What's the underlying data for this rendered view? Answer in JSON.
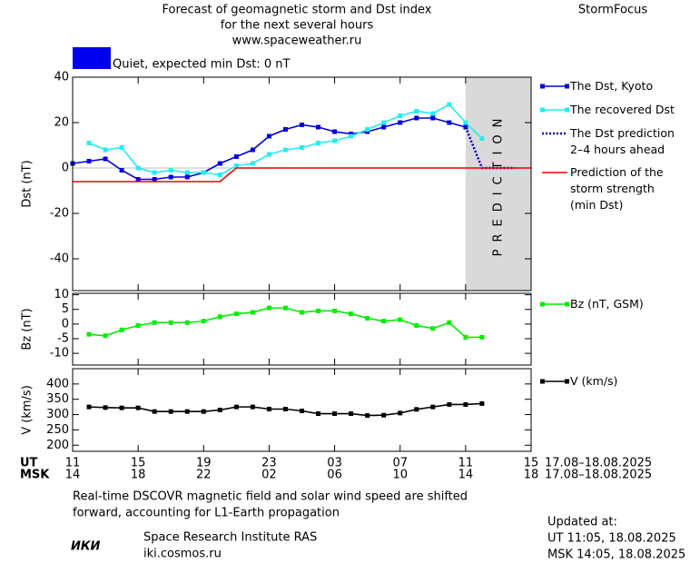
{
  "header": {
    "title_lines": [
      "Forecast of geomagnetic storm and Dst index",
      "for the next several hours",
      "www.spaceweather.ru"
    ],
    "brand": "StormFocus",
    "status": {
      "color": "#0000ee",
      "text": "Quiet, expected min Dst: 0 nT"
    }
  },
  "chart_data": [
    {
      "type": "line",
      "ylabel": "Dst (nT)",
      "xlim": [
        0,
        28
      ],
      "ylim": [
        -54,
        40
      ],
      "yticks": [
        -40,
        -20,
        0,
        20,
        40
      ],
      "prediction_zone": {
        "xlim": [
          24,
          28
        ],
        "color": "#d9d9d9",
        "label": "PREDICTION"
      },
      "series": [
        {
          "name": "The Dst, Kyoto",
          "color": "#0000dd",
          "marker": "square",
          "x": [
            0,
            1,
            2,
            3,
            4,
            5,
            6,
            7,
            8,
            9,
            10,
            11,
            12,
            13,
            14,
            15,
            16,
            17,
            18,
            19,
            20,
            21,
            22,
            23,
            24
          ],
          "values": [
            2,
            3,
            4,
            -1,
            -5,
            -5,
            -4,
            -4,
            -2,
            2,
            5,
            8,
            14,
            17,
            19,
            18,
            16,
            15,
            16,
            18,
            20,
            22,
            22,
            20,
            18
          ]
        },
        {
          "name": "The recovered Dst",
          "color": "#22eeee",
          "marker": "square",
          "x": [
            1,
            2,
            3,
            4,
            5,
            6,
            7,
            8,
            9,
            10,
            11,
            12,
            13,
            14,
            15,
            16,
            17,
            18,
            19,
            20,
            21,
            22,
            23,
            24,
            25
          ],
          "values": [
            11,
            8,
            9,
            0,
            -2,
            -1,
            -2,
            -2,
            -3,
            1,
            2,
            6,
            8,
            9,
            11,
            12,
            14,
            17,
            20,
            23,
            25,
            24,
            28,
            20,
            13
          ]
        },
        {
          "name": "The Dst prediction\n2–4 hours ahead",
          "color": "#0000bb",
          "dash": "dotted",
          "x": [
            24,
            25,
            26,
            27
          ],
          "values": [
            18,
            0,
            0,
            0
          ]
        },
        {
          "name": "Prediction of the\nstorm strength\n(min Dst)",
          "color": "#ee0000",
          "x": [
            0,
            9,
            10,
            28
          ],
          "values": [
            -6,
            -6,
            0,
            0
          ]
        }
      ]
    },
    {
      "type": "line",
      "ylabel": "Bz (nT)",
      "xlim": [
        0,
        28
      ],
      "ylim": [
        -14,
        10.5
      ],
      "yticks": [
        -10,
        -5,
        0,
        5,
        10
      ],
      "series": [
        {
          "name": "Bz (nT, GSM)",
          "color": "#00ee00",
          "marker": "square",
          "x": [
            1,
            2,
            3,
            4,
            5,
            6,
            7,
            8,
            9,
            10,
            11,
            12,
            13,
            14,
            15,
            16,
            17,
            18,
            19,
            20,
            21,
            22,
            23,
            24,
            25
          ],
          "values": [
            -3.5,
            -4,
            -2,
            -0.5,
            0.5,
            0.5,
            0.5,
            1,
            2.5,
            3.5,
            4,
            5.5,
            5.5,
            4,
            4.5,
            4.5,
            3.5,
            2,
            1,
            1.5,
            -0.5,
            -1.5,
            0.5,
            -4.5,
            -4.5
          ]
        }
      ]
    },
    {
      "type": "line",
      "ylabel": "V (km/s)",
      "xlim": [
        0,
        28
      ],
      "ylim": [
        180,
        450
      ],
      "yticks": [
        200,
        250,
        300,
        350,
        400
      ],
      "series": [
        {
          "name": "V (km/s)",
          "color": "#000000",
          "marker": "square",
          "x": [
            1,
            2,
            3,
            4,
            5,
            6,
            7,
            8,
            9,
            10,
            11,
            12,
            13,
            14,
            15,
            16,
            17,
            18,
            19,
            20,
            21,
            22,
            23,
            24,
            25
          ],
          "values": [
            325,
            323,
            322,
            322,
            310,
            310,
            310,
            310,
            315,
            325,
            325,
            318,
            318,
            312,
            303,
            303,
            303,
            297,
            298,
            305,
            317,
            325,
            333,
            333,
            336
          ]
        }
      ],
      "xrows": [
        {
          "label": "UT",
          "date": "17.08–18.08.2025",
          "ticks": [
            {
              "value": 0,
              "label": "11"
            },
            {
              "value": 4,
              "label": "15"
            },
            {
              "value": 8,
              "label": "19"
            },
            {
              "value": 12,
              "label": "23"
            },
            {
              "value": 16,
              "label": "03"
            },
            {
              "value": 20,
              "label": "07"
            },
            {
              "value": 24,
              "label": "11"
            },
            {
              "value": 28,
              "label": "15"
            }
          ]
        },
        {
          "label": "MSK",
          "date": "17.08–18.08.2025",
          "ticks": [
            {
              "value": 0,
              "label": "14"
            },
            {
              "value": 4,
              "label": "18"
            },
            {
              "value": 8,
              "label": "22"
            },
            {
              "value": 12,
              "label": "02"
            },
            {
              "value": 16,
              "label": "06"
            },
            {
              "value": 20,
              "label": "10"
            },
            {
              "value": 24,
              "label": "14"
            },
            {
              "value": 28,
              "label": "18"
            }
          ]
        }
      ]
    }
  ],
  "footer": {
    "note_lines": [
      "Real-time DSCOVR magnetic field and solar wind speed are shifted",
      "forward, accounting for L1-Earth propagation"
    ],
    "logo": "ИКИ",
    "institute": "Space Research Institute RAS",
    "site": "iki.cosmos.ru",
    "updated_lines": [
      "Updated at:",
      "UT   11:05, 18.08.2025",
      "MSK 14:05, 18.08.2025"
    ]
  }
}
